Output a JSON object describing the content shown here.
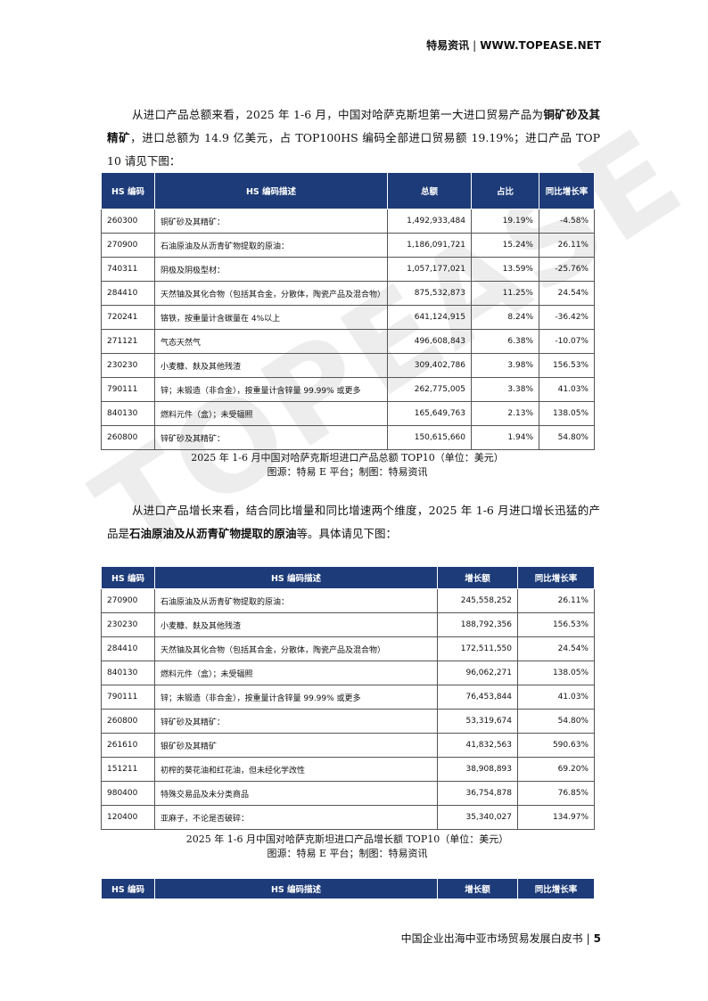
{
  "header": {
    "brand": "特易资讯",
    "site": "WWW.TOPEASE.NET"
  },
  "watermark": "TOPEASE",
  "paragraphs": [
    {
      "segments": [
        {
          "text": "从进口产品总额来看，2025 年 1-6 月，中国对哈萨克斯坦第一大进口贸易产品为",
          "bold": false
        },
        {
          "text": "铜矿砂及其精矿",
          "bold": true
        },
        {
          "text": "，进口总额为 14.9 亿美元，占 TOP100HS 编码全部进口贸易额 19.19%；进口产品 TOP 10 请见下图：",
          "bold": false
        }
      ]
    },
    {
      "segments": [
        {
          "text": "从进口产品增长来看，结合同比增量和同比增速两个维度，2025 年 1-6 月进口增长迅猛的产品是",
          "bold": false
        },
        {
          "text": "石油原油及从沥青矿物提取的原油",
          "bold": true
        },
        {
          "text": "等。具体请见下图：",
          "bold": false
        }
      ]
    }
  ],
  "tables": [
    {
      "columns": [
        "HS 编码",
        "HS 编码描述",
        "总额",
        "占比",
        "同比增长率"
      ],
      "rows": [
        [
          "260300",
          "铜矿砂及其精矿：",
          "1,492,933,484",
          "19.19%",
          "-4.58%"
        ],
        [
          "270900",
          "石油原油及从沥青矿物提取的原油：",
          "1,186,091,721",
          "15.24%",
          "26.11%"
        ],
        [
          "740311",
          "阴极及阴极型材：",
          "1,057,177,021",
          "13.59%",
          "-25.76%"
        ],
        [
          "284410",
          "天然铀及其化合物（包括其合金，分散体，陶瓷产品及混合物）",
          "875,532,873",
          "11.25%",
          "24.54%"
        ],
        [
          "720241",
          "铬铁，按重量计含碳量在 4%以上",
          "641,124,915",
          "8.24%",
          "-36.42%"
        ],
        [
          "271121",
          "气态天然气",
          "496,608,843",
          "6.38%",
          "-10.07%"
        ],
        [
          "230230",
          "小麦糠、麸及其他残渣",
          "309,402,786",
          "3.98%",
          "156.53%"
        ],
        [
          "790111",
          "锌；未锻造（非合金），按重量计含锌量 99.99% 或更多",
          "262,775,005",
          "3.38%",
          "41.03%"
        ],
        [
          "840130",
          "燃料元件（盒）；未受辐照",
          "165,649,763",
          "2.13%",
          "138.05%"
        ],
        [
          "260800",
          "锌矿砂及其精矿：",
          "150,615,660",
          "1.94%",
          "54.80%"
        ]
      ],
      "caption": [
        "2025 年 1-6 月中国对哈萨克斯坦进口产品总额 TOP10（单位：美元）",
        "图源：特易 E 平台；制图：特易资讯"
      ]
    },
    {
      "columns": [
        "HS 编码",
        "HS 编码描述",
        "增长额",
        "同比增长率"
      ],
      "rows": [
        [
          "270900",
          "石油原油及从沥青矿物提取的原油：",
          "245,558,252",
          "26.11%"
        ],
        [
          "230230",
          "小麦糠、麸及其他残渣",
          "188,792,356",
          "156.53%"
        ],
        [
          "284410",
          "天然铀及其化合物（包括其合金，分散体，陶瓷产品及混合物）",
          "172,511,550",
          "24.54%"
        ],
        [
          "840130",
          "燃料元件（盒）；未受辐照",
          "96,062,271",
          "138.05%"
        ],
        [
          "790111",
          "锌；未锻造（非合金），按重量计含锌量 99.99% 或更多",
          "76,453,844",
          "41.03%"
        ],
        [
          "260800",
          "锌矿砂及其精矿：",
          "53,319,674",
          "54.80%"
        ],
        [
          "261610",
          "银矿砂及其精矿",
          "41,832,563",
          "590.63%"
        ],
        [
          "151211",
          "初榨的葵花油和红花油，但未经化学改性",
          "38,908,893",
          "69.20%"
        ],
        [
          "980400",
          "特殊交易品及未分类商品",
          "36,754,878",
          "76.85%"
        ],
        [
          "120400",
          "亚麻子，不论是否破碎：",
          "35,340,027",
          "134.97%"
        ]
      ],
      "caption": [
        "2025 年 1-6 月中国对哈萨克斯坦进口产品增长额 TOP10（单位：美元）",
        "图源：特易 E 平台；制图：特易资讯"
      ]
    },
    {
      "columns": [
        "HS 编码",
        "HS 编码描述",
        "增长额",
        "同比增长率"
      ],
      "rows": [],
      "caption": []
    }
  ],
  "footer": {
    "title": "中国企业出海中亚市场贸易发展白皮书",
    "page": "5"
  }
}
